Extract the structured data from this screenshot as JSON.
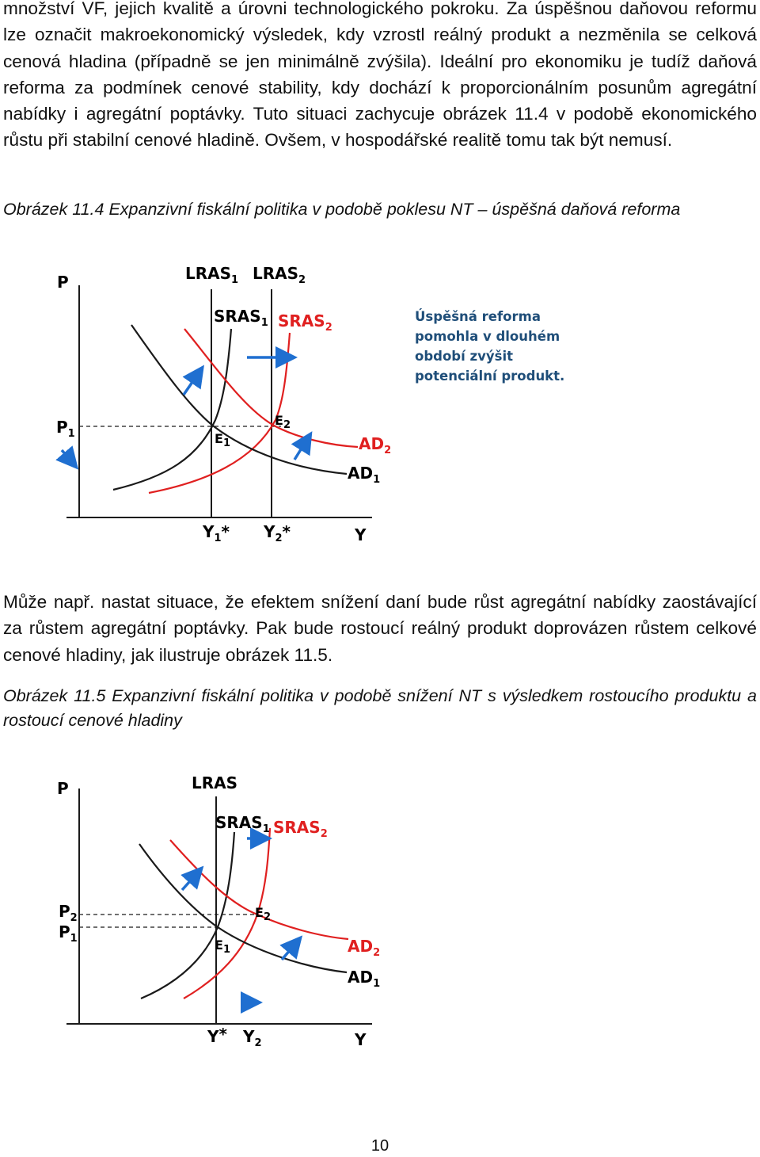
{
  "paragraph1": "množství VF, jejich kvalitě a úrovni technologického pokroku. Za úspěšnou daňovou reformu lze označit makroekonomický výsledek, kdy vzrostl reálný produkt a nezměnila se celková cenová hladina (případně se jen minimálně zvýšila). Ideální pro ekonomiku je tudíž daňová reforma za podmínek cenové stability, kdy dochází k proporcionálním posunům agregátní nabídky i agregátní poptávky. Tuto situaci zachycuje obrázek 11.4 v podobě ekonomického růstu při stabilní cenové hladině. Ovšem, v hospodářské realitě tomu tak být nemusí.",
  "caption1": "Obrázek 11.4 Expanzivní fiskální politika v podobě poklesu NT – úspěšná daňová reforma",
  "paragraph2": "Může např. nastat situace, že efektem snížení daní bude růst agregátní nabídky zaostávající za růstem agregátní poptávky. Pak bude rostoucí reálný produkt doprovázen růstem celkové cenové hladiny, jak ilustruje obrázek 11.5.",
  "caption2": "Obrázek 11.5 Expanzivní fiskální politika v podobě snížení NT s výsledkem rostoucího produktu a rostoucí cenové hladiny",
  "figure1": {
    "labels": {
      "p_axis": "P",
      "y_axis": "Y",
      "lras1": "LRAS",
      "lras1_sub": "1",
      "lras2": "LRAS",
      "lras2_sub": "2",
      "sras1": "SRAS",
      "sras1_sub": "1",
      "sras2": "SRAS",
      "sras2_sub": "2",
      "ad1": "AD",
      "ad1_sub": "1",
      "ad2": "AD",
      "ad2_sub": "2",
      "e1": "E",
      "e1_sub": "1",
      "e2": "E",
      "e2_sub": "2",
      "p1": "P",
      "p1_sub": "1",
      "y1": "Y",
      "y1_sub": "1",
      "y1_star": "*",
      "y2": "Y",
      "y2_sub": "2",
      "y2_star": "*"
    },
    "note": [
      "Úspěšná reforma",
      "pomohla v dlouhém",
      "období zvýšit",
      "potenciální produkt."
    ]
  },
  "figure2": {
    "labels": {
      "p_axis": "P",
      "y_axis": "Y",
      "lras": "LRAS",
      "sras1": "SRAS",
      "sras1_sub": "1",
      "sras2": "SRAS",
      "sras2_sub": "2",
      "ad1": "AD",
      "ad1_sub": "1",
      "ad2": "AD",
      "ad2_sub": "2",
      "e1": "E",
      "e1_sub": "1",
      "e2": "E",
      "e2_sub": "2",
      "p1": "P",
      "p1_sub": "1",
      "p2": "P",
      "p2_sub": "2",
      "ystar": "Y",
      "ystar_star": "*",
      "y2": "Y",
      "y2_sub": "2"
    }
  },
  "colors": {
    "black": "#1a1a1a",
    "red": "#e02020",
    "blue": "#1f6fd0",
    "note": "#1f4e79"
  },
  "page_number": "10"
}
